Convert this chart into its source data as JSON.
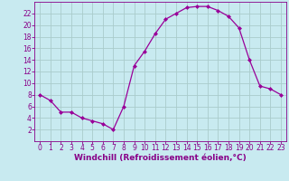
{
  "x": [
    0,
    1,
    2,
    3,
    4,
    5,
    6,
    7,
    8,
    9,
    10,
    11,
    12,
    13,
    14,
    15,
    16,
    17,
    18,
    19,
    20,
    21,
    22,
    23
  ],
  "y": [
    8,
    7,
    5,
    5,
    4,
    3.5,
    3,
    2,
    6,
    13,
    15.5,
    18.5,
    21,
    22,
    23,
    23.2,
    23.2,
    22.5,
    21.5,
    19.5,
    14,
    9.5,
    9,
    8
  ],
  "line_color": "#990099",
  "marker": "D",
  "marker_size": 2.0,
  "bg_color": "#c8eaf0",
  "grid_color": "#aacccc",
  "xlabel": "Windchill (Refroidissement éolien,°C)",
  "ylim": [
    0,
    24
  ],
  "xlim": [
    -0.5,
    23.5
  ],
  "yticks": [
    2,
    4,
    6,
    8,
    10,
    12,
    14,
    16,
    18,
    20,
    22
  ],
  "xticks": [
    0,
    1,
    2,
    3,
    4,
    5,
    6,
    7,
    8,
    9,
    10,
    11,
    12,
    13,
    14,
    15,
    16,
    17,
    18,
    19,
    20,
    21,
    22,
    23
  ],
  "tick_color": "#880088",
  "label_fontsize": 6.5,
  "tick_fontsize": 5.5
}
